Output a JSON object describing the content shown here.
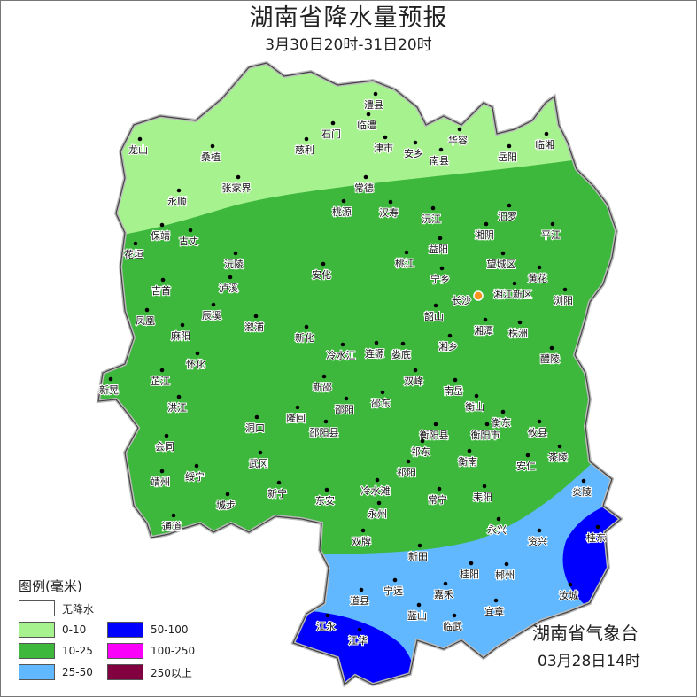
{
  "header": {
    "title": "湖南省降水量预报",
    "subtitle": "3月30日20时-31日20时"
  },
  "legend": {
    "title": "图例(毫米)",
    "items": [
      {
        "label": "无降水",
        "color": "#ffffff"
      },
      {
        "label": "0-10",
        "color": "#a6f28f"
      },
      {
        "label": "10-25",
        "color": "#3db83d"
      },
      {
        "label": "25-50",
        "color": "#61b8ff"
      },
      {
        "label": "50-100",
        "color": "#0000fe"
      },
      {
        "label": "100-250",
        "color": "#fa00fa"
      },
      {
        "label": "250以上",
        "color": "#800040"
      }
    ]
  },
  "footer": {
    "agency": "湖南省气象台",
    "issued": "03月28日14时"
  },
  "capital": "长沙",
  "cities": [
    "龙山",
    "桑植",
    "慈利",
    "石门",
    "澧县",
    "临澧",
    "津市",
    "安乡",
    "南县",
    "华容",
    "岳阳",
    "临湘",
    "永顺",
    "张家界",
    "常德",
    "桃源",
    "汉寿",
    "沅江",
    "汨罗",
    "湘阴",
    "平江",
    "保靖",
    "古丈",
    "花垣",
    "沅陵",
    "桃江",
    "益阳",
    "望城区",
    "宁乡",
    "黄花",
    "吉首",
    "泸溪",
    "安化",
    "湘江新区",
    "浏阳",
    "凤凰",
    "麻阳",
    "辰溪",
    "溆浦",
    "韶山",
    "湘潭",
    "株洲",
    "新化",
    "冷水江",
    "连源",
    "娄底",
    "湘乡",
    "醴陵",
    "怀化",
    "芷江",
    "新晃",
    "双峰",
    "洪江",
    "新邵",
    "邵阳",
    "邵东",
    "南岳",
    "衡山",
    "衡东",
    "攸县",
    "隆回",
    "洞口",
    "邵阳县",
    "衡阳县",
    "衡阳市",
    "会同",
    "祁东",
    "衡南",
    "茶陵",
    "安仁",
    "靖州",
    "武冈",
    "绥宁",
    "祁阳",
    "冷水滩",
    "常宁",
    "耒阳",
    "炎陵",
    "通道",
    "城步",
    "新宁",
    "东安",
    "永州",
    "双牌",
    "永兴",
    "资兴",
    "桂东",
    "新田",
    "桂阳",
    "郴州",
    "宁远",
    "道县",
    "嘉禾",
    "蓝山",
    "临武",
    "宜章",
    "汝城",
    "江永",
    "江华"
  ]
}
